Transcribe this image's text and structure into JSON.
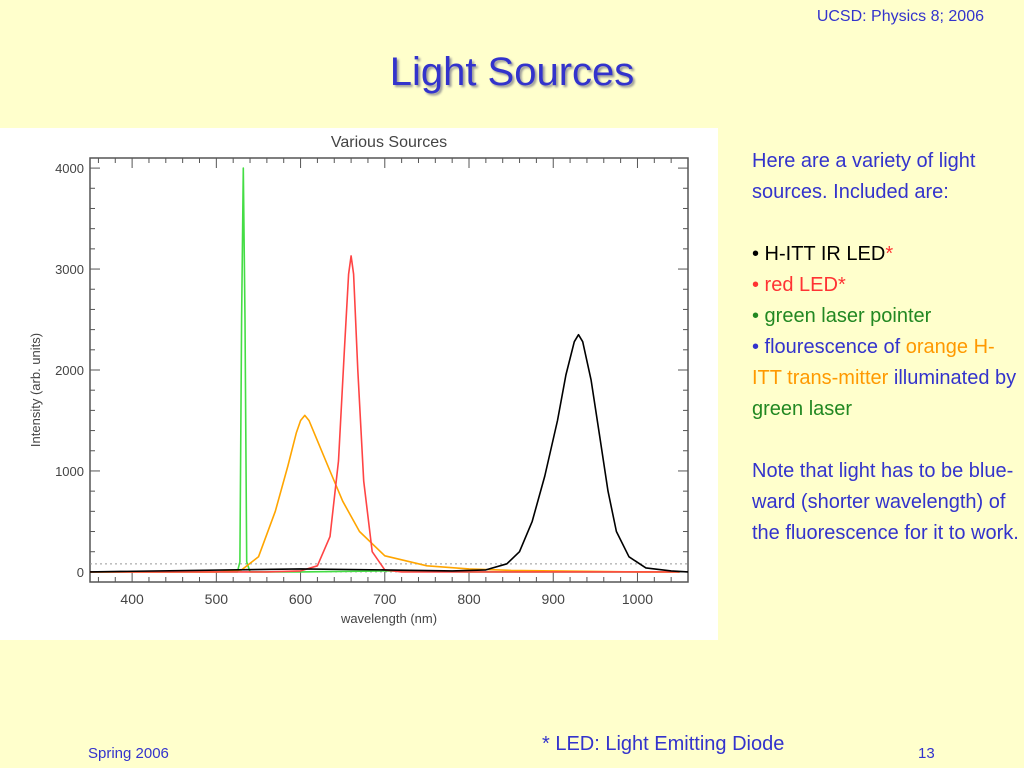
{
  "header": {
    "course": "UCSD: Physics 8; 2006"
  },
  "slide": {
    "title": "Light Sources"
  },
  "chart_data": {
    "type": "line",
    "title": "Various Sources",
    "xlabel": "wavelength (nm)",
    "ylabel": "Intensity (arb. units)",
    "xlim": [
      350,
      1060
    ],
    "ylim": [
      -100,
      4100
    ],
    "xticks": [
      400,
      500,
      600,
      700,
      800,
      900,
      1000
    ],
    "yticks": [
      0,
      1000,
      2000,
      3000,
      4000
    ],
    "grid": true,
    "series": [
      {
        "color": "#44dd44",
        "x": [
          350,
          500,
          525,
          528,
          530,
          532,
          534,
          536,
          540,
          600,
          700,
          800,
          900,
          1050
        ],
        "y": [
          0,
          0,
          0,
          100,
          2500,
          4000,
          2500,
          100,
          0,
          0,
          10,
          0,
          0,
          0
        ]
      },
      {
        "color": "#ffa500",
        "x": [
          350,
          500,
          530,
          550,
          570,
          585,
          595,
          600,
          605,
          610,
          620,
          635,
          650,
          670,
          700,
          750,
          800,
          850,
          900,
          1000,
          1050
        ],
        "y": [
          0,
          0,
          20,
          150,
          600,
          1050,
          1380,
          1500,
          1550,
          1500,
          1300,
          1000,
          700,
          400,
          160,
          60,
          30,
          15,
          10,
          0,
          0
        ]
      },
      {
        "color": "#ff4444",
        "x": [
          350,
          560,
          600,
          620,
          635,
          645,
          652,
          657,
          660,
          663,
          668,
          675,
          685,
          700,
          720,
          800,
          1050
        ],
        "y": [
          0,
          0,
          10,
          60,
          350,
          1100,
          2200,
          2950,
          3130,
          2950,
          2000,
          900,
          200,
          20,
          0,
          0,
          0
        ]
      },
      {
        "color": "#000000",
        "x": [
          350,
          600,
          700,
          780,
          820,
          845,
          860,
          875,
          890,
          905,
          915,
          925,
          930,
          935,
          945,
          955,
          965,
          975,
          990,
          1010,
          1040,
          1060
        ],
        "y": [
          0,
          30,
          20,
          10,
          20,
          80,
          200,
          500,
          950,
          1500,
          1950,
          2280,
          2350,
          2280,
          1900,
          1350,
          800,
          400,
          150,
          40,
          10,
          0
        ]
      }
    ]
  },
  "text_panel": {
    "intro": "Here are a variety of light sources.  Included are:",
    "bullet1": "• H-ITT IR LED",
    "bullet1_star": "*",
    "bullet2": "• red LED",
    "bullet2_star": "*",
    "bullet3": "• green laser pointer",
    "bullet4_a": "• flourescence of ",
    "bullet4_b": "orange H-ITT trans-mitter",
    "bullet4_c": " illuminated by ",
    "bullet4_d": "green laser",
    "note": "Note that light has to be blue-ward (shorter wavelength) of the fluorescence for it to work."
  },
  "footnote": "* LED: Light Emitting Diode",
  "footer": {
    "left": "Spring 2006",
    "page": "13"
  },
  "colors": {
    "background": "#ffffcc",
    "accent_blue": "#3333cc",
    "red_text": "#ff3333",
    "green_text": "#228822",
    "orange_text": "#ff9900"
  }
}
